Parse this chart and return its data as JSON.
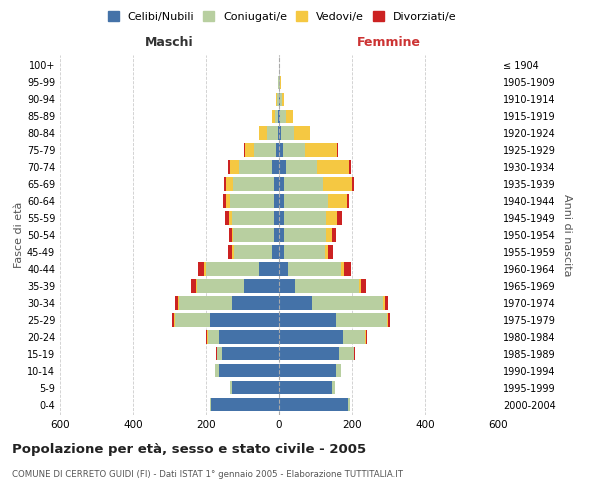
{
  "age_groups": [
    "0-4",
    "5-9",
    "10-14",
    "15-19",
    "20-24",
    "25-29",
    "30-34",
    "35-39",
    "40-44",
    "45-49",
    "50-54",
    "55-59",
    "60-64",
    "65-69",
    "70-74",
    "75-79",
    "80-84",
    "85-89",
    "90-94",
    "95-99",
    "100+"
  ],
  "birth_years": [
    "2000-2004",
    "1995-1999",
    "1990-1994",
    "1985-1989",
    "1980-1984",
    "1975-1979",
    "1970-1974",
    "1965-1969",
    "1960-1964",
    "1955-1959",
    "1950-1954",
    "1945-1949",
    "1940-1944",
    "1935-1939",
    "1930-1934",
    "1925-1929",
    "1920-1924",
    "1915-1919",
    "1910-1914",
    "1905-1909",
    "≤ 1904"
  ],
  "male": {
    "celibi": [
      185,
      130,
      165,
      155,
      165,
      190,
      130,
      95,
      55,
      18,
      15,
      15,
      15,
      15,
      20,
      8,
      4,
      2,
      1,
      0,
      0
    ],
    "coniugati": [
      5,
      5,
      10,
      15,
      30,
      95,
      145,
      130,
      145,
      105,
      110,
      115,
      120,
      110,
      90,
      60,
      30,
      10,
      4,
      2,
      0
    ],
    "vedovi": [
      0,
      0,
      0,
      1,
      1,
      3,
      3,
      3,
      5,
      5,
      5,
      8,
      10,
      20,
      25,
      25,
      20,
      8,
      3,
      1,
      0
    ],
    "divorziati": [
      0,
      0,
      0,
      1,
      3,
      5,
      8,
      12,
      18,
      12,
      8,
      10,
      8,
      5,
      4,
      2,
      1,
      0,
      0,
      0,
      0
    ]
  },
  "female": {
    "nubili": [
      190,
      145,
      155,
      165,
      175,
      155,
      90,
      45,
      25,
      15,
      15,
      15,
      15,
      15,
      18,
      10,
      5,
      3,
      2,
      0,
      0
    ],
    "coniugate": [
      5,
      8,
      15,
      40,
      60,
      140,
      195,
      175,
      145,
      110,
      115,
      115,
      120,
      105,
      85,
      60,
      35,
      15,
      5,
      2,
      0
    ],
    "vedove": [
      0,
      0,
      0,
      1,
      2,
      3,
      5,
      5,
      8,
      10,
      15,
      30,
      50,
      80,
      90,
      90,
      45,
      20,
      8,
      3,
      0
    ],
    "divorziate": [
      0,
      0,
      0,
      1,
      3,
      5,
      8,
      12,
      18,
      12,
      12,
      12,
      8,
      5,
      4,
      2,
      0,
      0,
      0,
      0,
      0
    ]
  },
  "colors": {
    "celibi_nubili": "#4472a8",
    "coniugati": "#b8cfa0",
    "vedovi": "#f5c842",
    "divorziati": "#cc2222"
  },
  "title": "Popolazione per età, sesso e stato civile - 2005",
  "subtitle": "COMUNE DI CERRETO GUIDI (FI) - Dati ISTAT 1° gennaio 2005 - Elaborazione TUTTITALIA.IT",
  "xlabel_left": "Maschi",
  "xlabel_right": "Femmine",
  "ylabel_left": "Fasce di età",
  "ylabel_right": "Anni di nascita",
  "xlim": 600,
  "legend_labels": [
    "Celibi/Nubili",
    "Coniugati/e",
    "Vedovi/e",
    "Divorziati/e"
  ],
  "bg_color": "#ffffff",
  "grid_color": "#cccccc"
}
